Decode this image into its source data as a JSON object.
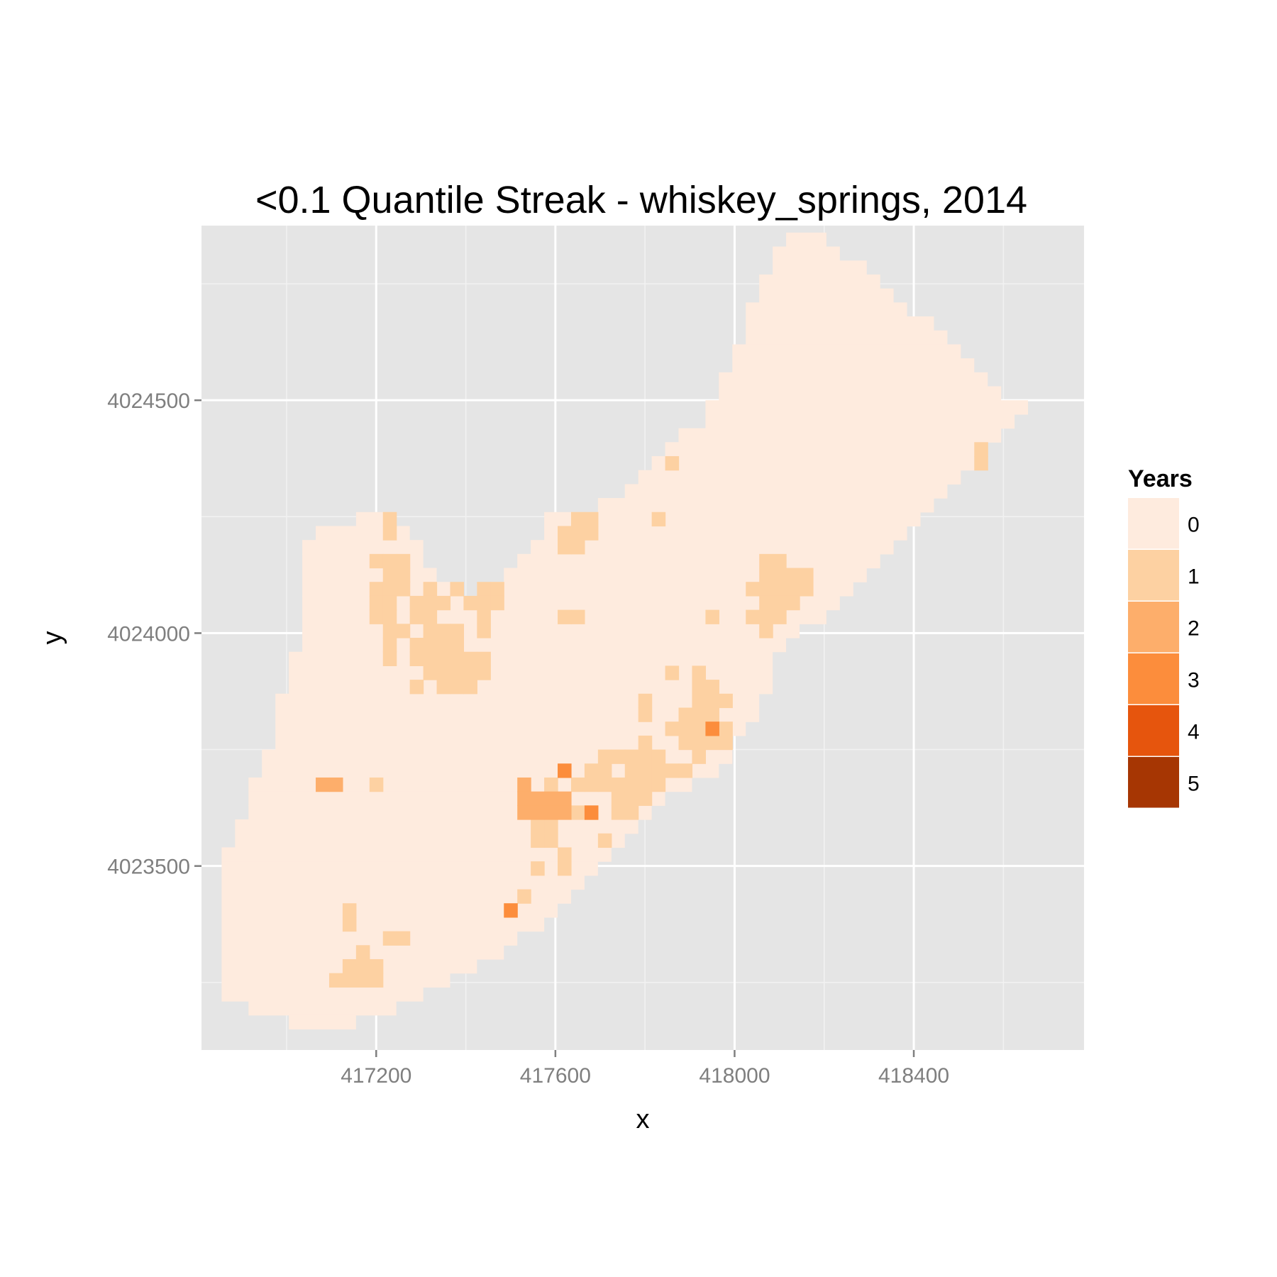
{
  "chart_data": {
    "type": "heatmap",
    "title": "<0.1 Quantile Streak - whiskey_springs, 2014",
    "xlabel": "x",
    "ylabel": "y",
    "xlim": [
      416810,
      418780
    ],
    "ylim": [
      4023105,
      4024875
    ],
    "x_ticks": [
      417200,
      417600,
      418000,
      418400
    ],
    "y_ticks": [
      4023500,
      4024000,
      4024500
    ],
    "grid": true,
    "cell_size": 30,
    "legend": {
      "title": "Years",
      "position": "right",
      "levels": [
        {
          "label": "0",
          "color": "#FEEBDE"
        },
        {
          "label": "1",
          "color": "#FDD1A2"
        },
        {
          "label": "2",
          "color": "#FDAE6B"
        },
        {
          "label": "3",
          "color": "#FC8D3C"
        },
        {
          "label": "4",
          "color": "#E6550D"
        },
        {
          "label": "5",
          "color": "#A63603"
        }
      ]
    },
    "region_rows": [
      {
        "y": 4024845,
        "ranges": [
          [
            418130,
            418190
          ]
        ]
      },
      {
        "y": 4024815,
        "ranges": [
          [
            418100,
            418220
          ]
        ]
      },
      {
        "y": 4024785,
        "ranges": [
          [
            418100,
            418280
          ]
        ]
      },
      {
        "y": 4024755,
        "ranges": [
          [
            418070,
            418310
          ]
        ]
      },
      {
        "y": 4024725,
        "ranges": [
          [
            418070,
            418340
          ]
        ]
      },
      {
        "y": 4024695,
        "ranges": [
          [
            418040,
            418370
          ]
        ]
      },
      {
        "y": 4024665,
        "ranges": [
          [
            418040,
            418430
          ]
        ]
      },
      {
        "y": 4024635,
        "ranges": [
          [
            418040,
            418460
          ]
        ]
      },
      {
        "y": 4024605,
        "ranges": [
          [
            418010,
            418490
          ]
        ]
      },
      {
        "y": 4024575,
        "ranges": [
          [
            418010,
            418520
          ]
        ]
      },
      {
        "y": 4024545,
        "ranges": [
          [
            417980,
            418550
          ]
        ]
      },
      {
        "y": 4024515,
        "ranges": [
          [
            417980,
            418580
          ]
        ]
      },
      {
        "y": 4024485,
        "ranges": [
          [
            417950,
            418640
          ]
        ]
      },
      {
        "y": 4024455,
        "ranges": [
          [
            417950,
            418610
          ]
        ]
      },
      {
        "y": 4024425,
        "ranges": [
          [
            417890,
            418580
          ]
        ]
      },
      {
        "y": 4024395,
        "ranges": [
          [
            417860,
            418550
          ]
        ]
      },
      {
        "y": 4024365,
        "ranges": [
          [
            417830,
            418520
          ]
        ]
      },
      {
        "y": 4024335,
        "ranges": [
          [
            417800,
            418490
          ]
        ]
      },
      {
        "y": 4024305,
        "ranges": [
          [
            417770,
            418460
          ]
        ]
      },
      {
        "y": 4024275,
        "ranges": [
          [
            417710,
            418430
          ]
        ]
      },
      {
        "y": 4024245,
        "ranges": [
          [
            417170,
            417230
          ],
          [
            417590,
            418400
          ]
        ]
      },
      {
        "y": 4024215,
        "ranges": [
          [
            417080,
            417260
          ],
          [
            417590,
            418370
          ]
        ]
      },
      {
        "y": 4024185,
        "ranges": [
          [
            417050,
            417290
          ],
          [
            417560,
            418340
          ]
        ]
      },
      {
        "y": 4024155,
        "ranges": [
          [
            417050,
            417290
          ],
          [
            417530,
            418310
          ]
        ]
      },
      {
        "y": 4024125,
        "ranges": [
          [
            417050,
            417320
          ],
          [
            417500,
            418280
          ]
        ]
      },
      {
        "y": 4024095,
        "ranges": [
          [
            417050,
            417350
          ],
          [
            417470,
            418250
          ]
        ]
      },
      {
        "y": 4024065,
        "ranges": [
          [
            417050,
            417470
          ],
          [
            417470,
            418220
          ]
        ]
      },
      {
        "y": 4024035,
        "ranges": [
          [
            417050,
            418190
          ]
        ]
      },
      {
        "y": 4024005,
        "ranges": [
          [
            417050,
            418130
          ]
        ]
      },
      {
        "y": 4023975,
        "ranges": [
          [
            417050,
            418100
          ]
        ]
      },
      {
        "y": 4023945,
        "ranges": [
          [
            417020,
            418070
          ]
        ]
      },
      {
        "y": 4023915,
        "ranges": [
          [
            417020,
            418070
          ]
        ]
      },
      {
        "y": 4023885,
        "ranges": [
          [
            417020,
            418070
          ]
        ]
      },
      {
        "y": 4023855,
        "ranges": [
          [
            416990,
            418040
          ]
        ]
      },
      {
        "y": 4023825,
        "ranges": [
          [
            416990,
            418040
          ]
        ]
      },
      {
        "y": 4023795,
        "ranges": [
          [
            416990,
            418010
          ]
        ]
      },
      {
        "y": 4023765,
        "ranges": [
          [
            416990,
            417980
          ]
        ]
      },
      {
        "y": 4023735,
        "ranges": [
          [
            416960,
            417980
          ]
        ]
      },
      {
        "y": 4023705,
        "ranges": [
          [
            416960,
            417950
          ]
        ]
      },
      {
        "y": 4023675,
        "ranges": [
          [
            416930,
            417890
          ]
        ]
      },
      {
        "y": 4023645,
        "ranges": [
          [
            416930,
            417830
          ]
        ]
      },
      {
        "y": 4023615,
        "ranges": [
          [
            416930,
            417800
          ]
        ]
      },
      {
        "y": 4023585,
        "ranges": [
          [
            416900,
            417770
          ]
        ]
      },
      {
        "y": 4023555,
        "ranges": [
          [
            416900,
            417740
          ]
        ]
      },
      {
        "y": 4023525,
        "ranges": [
          [
            416870,
            417710
          ]
        ]
      },
      {
        "y": 4023495,
        "ranges": [
          [
            416870,
            417680
          ]
        ]
      },
      {
        "y": 4023465,
        "ranges": [
          [
            416870,
            417650
          ]
        ]
      },
      {
        "y": 4023435,
        "ranges": [
          [
            416870,
            417620
          ]
        ]
      },
      {
        "y": 4023405,
        "ranges": [
          [
            416870,
            417590
          ]
        ]
      },
      {
        "y": 4023375,
        "ranges": [
          [
            416870,
            417560
          ]
        ]
      },
      {
        "y": 4023345,
        "ranges": [
          [
            416870,
            417500
          ]
        ]
      },
      {
        "y": 4023315,
        "ranges": [
          [
            416870,
            417470
          ]
        ]
      },
      {
        "y": 4023285,
        "ranges": [
          [
            416870,
            417410
          ]
        ]
      },
      {
        "y": 4023255,
        "ranges": [
          [
            416870,
            417350
          ]
        ]
      },
      {
        "y": 4023225,
        "ranges": [
          [
            416870,
            417290
          ]
        ]
      },
      {
        "y": 4023195,
        "ranges": [
          [
            416930,
            417230
          ]
        ]
      },
      {
        "y": 4023165,
        "ranges": [
          [
            417020,
            417140
          ]
        ]
      }
    ],
    "cells": [
      [
        418550,
        4024395,
        1
      ],
      [
        418550,
        4024365,
        1
      ],
      [
        417860,
        4024365,
        1
      ],
      [
        417230,
        4024245,
        1
      ],
      [
        417230,
        4024215,
        1
      ],
      [
        417650,
        4024245,
        1
      ],
      [
        417680,
        4024245,
        1
      ],
      [
        417620,
        4024215,
        1
      ],
      [
        417650,
        4024215,
        1
      ],
      [
        417680,
        4024215,
        1
      ],
      [
        417620,
        4024185,
        1
      ],
      [
        417650,
        4024185,
        1
      ],
      [
        417830,
        4024245,
        1
      ],
      [
        417200,
        4024155,
        1
      ],
      [
        417230,
        4024155,
        1
      ],
      [
        417260,
        4024155,
        1
      ],
      [
        417260,
        4024125,
        1
      ],
      [
        417230,
        4024125,
        1
      ],
      [
        417200,
        4024095,
        1
      ],
      [
        417230,
        4024095,
        1
      ],
      [
        417260,
        4024095,
        1
      ],
      [
        417320,
        4024095,
        1
      ],
      [
        417380,
        4024095,
        1
      ],
      [
        417440,
        4024095,
        1
      ],
      [
        417470,
        4024095,
        1
      ],
      [
        417200,
        4024065,
        1
      ],
      [
        417230,
        4024065,
        1
      ],
      [
        417290,
        4024065,
        1
      ],
      [
        417320,
        4024065,
        1
      ],
      [
        417350,
        4024065,
        1
      ],
      [
        417410,
        4024065,
        1
      ],
      [
        417440,
        4024065,
        1
      ],
      [
        417470,
        4024065,
        1
      ],
      [
        417200,
        4024035,
        1
      ],
      [
        417230,
        4024035,
        1
      ],
      [
        417290,
        4024035,
        1
      ],
      [
        417320,
        4024035,
        1
      ],
      [
        417440,
        4024035,
        1
      ],
      [
        417230,
        4024005,
        1
      ],
      [
        417260,
        4024005,
        1
      ],
      [
        417320,
        4024005,
        1
      ],
      [
        417350,
        4024005,
        1
      ],
      [
        417380,
        4024005,
        1
      ],
      [
        417440,
        4024005,
        1
      ],
      [
        417230,
        4023975,
        1
      ],
      [
        417290,
        4023975,
        1
      ],
      [
        417320,
        4023975,
        1
      ],
      [
        417350,
        4023975,
        1
      ],
      [
        417380,
        4023975,
        1
      ],
      [
        417230,
        4023945,
        1
      ],
      [
        417290,
        4023945,
        1
      ],
      [
        417320,
        4023945,
        1
      ],
      [
        417350,
        4023945,
        1
      ],
      [
        417380,
        4023945,
        1
      ],
      [
        417410,
        4023945,
        1
      ],
      [
        417440,
        4023945,
        1
      ],
      [
        417320,
        4023915,
        1
      ],
      [
        417350,
        4023915,
        1
      ],
      [
        417380,
        4023915,
        1
      ],
      [
        417410,
        4023915,
        1
      ],
      [
        417440,
        4023915,
        1
      ],
      [
        417290,
        4023885,
        1
      ],
      [
        417350,
        4023885,
        1
      ],
      [
        417380,
        4023885,
        1
      ],
      [
        417410,
        4023885,
        1
      ],
      [
        417620,
        4024035,
        1
      ],
      [
        417650,
        4024035,
        1
      ],
      [
        417950,
        4024035,
        1
      ],
      [
        418070,
        4024155,
        1
      ],
      [
        418100,
        4024155,
        1
      ],
      [
        418070,
        4024125,
        1
      ],
      [
        418100,
        4024125,
        1
      ],
      [
        418130,
        4024125,
        1
      ],
      [
        418160,
        4024125,
        1
      ],
      [
        418040,
        4024095,
        1
      ],
      [
        418070,
        4024095,
        1
      ],
      [
        418100,
        4024095,
        1
      ],
      [
        418130,
        4024095,
        1
      ],
      [
        418160,
        4024095,
        1
      ],
      [
        418070,
        4024065,
        1
      ],
      [
        418100,
        4024065,
        1
      ],
      [
        418130,
        4024065,
        1
      ],
      [
        418040,
        4024035,
        1
      ],
      [
        418070,
        4024035,
        1
      ],
      [
        418100,
        4024035,
        1
      ],
      [
        418070,
        4024005,
        1
      ],
      [
        417860,
        4023915,
        1
      ],
      [
        417920,
        4023915,
        1
      ],
      [
        417920,
        4023885,
        1
      ],
      [
        417950,
        4023885,
        1
      ],
      [
        417920,
        4023855,
        1
      ],
      [
        417950,
        4023855,
        1
      ],
      [
        417980,
        4023855,
        1
      ],
      [
        417800,
        4023855,
        1
      ],
      [
        417800,
        4023825,
        1
      ],
      [
        417890,
        4023825,
        1
      ],
      [
        417920,
        4023825,
        1
      ],
      [
        417950,
        4023825,
        1
      ],
      [
        417860,
        4023795,
        1
      ],
      [
        417890,
        4023795,
        1
      ],
      [
        417920,
        4023795,
        1
      ],
      [
        417980,
        4023795,
        1
      ],
      [
        417890,
        4023765,
        1
      ],
      [
        417920,
        4023765,
        1
      ],
      [
        417950,
        4023765,
        1
      ],
      [
        417980,
        4023765,
        1
      ],
      [
        417920,
        4023735,
        1
      ],
      [
        417800,
        4023765,
        1
      ],
      [
        417710,
        4023735,
        1
      ],
      [
        417740,
        4023735,
        1
      ],
      [
        417770,
        4023735,
        1
      ],
      [
        417800,
        4023735,
        1
      ],
      [
        417830,
        4023735,
        1
      ],
      [
        417680,
        4023705,
        1
      ],
      [
        417710,
        4023705,
        1
      ],
      [
        417770,
        4023705,
        1
      ],
      [
        417800,
        4023705,
        1
      ],
      [
        417830,
        4023705,
        1
      ],
      [
        417860,
        4023705,
        1
      ],
      [
        417890,
        4023705,
        1
      ],
      [
        417650,
        4023675,
        1
      ],
      [
        417680,
        4023675,
        1
      ],
      [
        417710,
        4023675,
        1
      ],
      [
        417740,
        4023675,
        1
      ],
      [
        417770,
        4023675,
        1
      ],
      [
        417800,
        4023675,
        1
      ],
      [
        417830,
        4023675,
        1
      ],
      [
        417740,
        4023645,
        1
      ],
      [
        417770,
        4023645,
        1
      ],
      [
        417800,
        4023645,
        1
      ],
      [
        417590,
        4023675,
        1
      ],
      [
        417740,
        4023615,
        1
      ],
      [
        417770,
        4023615,
        1
      ],
      [
        417650,
        4023615,
        1
      ],
      [
        417680,
        4023615,
        1
      ],
      [
        417560,
        4023585,
        1
      ],
      [
        417590,
        4023585,
        1
      ],
      [
        417560,
        4023555,
        1
      ],
      [
        417590,
        4023555,
        1
      ],
      [
        417710,
        4023555,
        1
      ],
      [
        417560,
        4023495,
        1
      ],
      [
        417620,
        4023525,
        1
      ],
      [
        417620,
        4023495,
        1
      ],
      [
        417200,
        4023675,
        1
      ],
      [
        417530,
        4023435,
        1
      ],
      [
        417140,
        4023405,
        1
      ],
      [
        417140,
        4023375,
        1
      ],
      [
        417230,
        4023345,
        1
      ],
      [
        417260,
        4023345,
        1
      ],
      [
        417170,
        4023315,
        1
      ],
      [
        417140,
        4023285,
        1
      ],
      [
        417170,
        4023285,
        1
      ],
      [
        417200,
        4023285,
        1
      ],
      [
        417110,
        4023255,
        1
      ],
      [
        417140,
        4023255,
        1
      ],
      [
        417170,
        4023255,
        1
      ],
      [
        417200,
        4023255,
        1
      ],
      [
        417530,
        4023675,
        2
      ],
      [
        417530,
        4023645,
        2
      ],
      [
        417590,
        4023645,
        2
      ],
      [
        417620,
        4023645,
        2
      ],
      [
        417560,
        4023615,
        2
      ],
      [
        417590,
        4023615,
        2
      ],
      [
        417620,
        4023615,
        2
      ],
      [
        417560,
        4023645,
        2
      ],
      [
        417530,
        4023615,
        2
      ],
      [
        417080,
        4023675,
        2
      ],
      [
        417110,
        4023675,
        2
      ],
      [
        417620,
        4023705,
        3
      ],
      [
        417680,
        4023615,
        3
      ],
      [
        417950,
        4023795,
        3
      ],
      [
        417500,
        4023405,
        3
      ]
    ]
  }
}
